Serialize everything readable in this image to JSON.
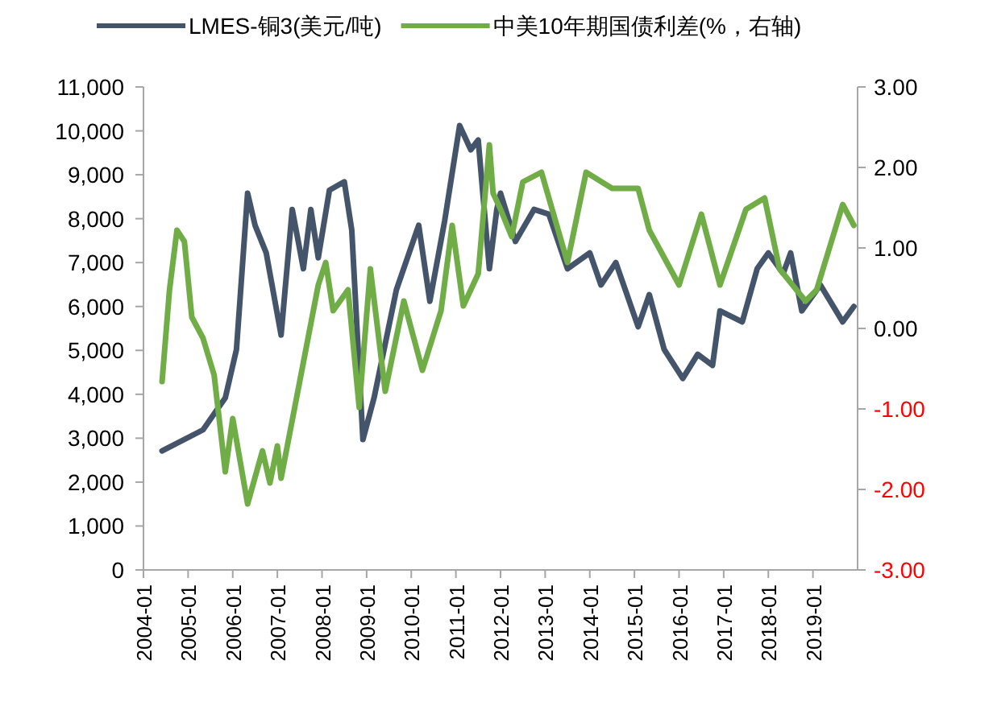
{
  "chart_data": {
    "type": "line",
    "legend": "top",
    "grid": false,
    "xlim": [
      "2004-01",
      "2020-01"
    ],
    "xticks": [
      "2004-01",
      "2005-01",
      "2006-01",
      "2007-01",
      "2008-01",
      "2009-01",
      "2010-01",
      "2011-01",
      "2012-01",
      "2013-01",
      "2014-01",
      "2015-01",
      "2016-01",
      "2017-01",
      "2018-01",
      "2019-01"
    ],
    "ylim": [
      0,
      11000
    ],
    "yticks": [
      {
        "value": 0,
        "label": "0"
      },
      {
        "value": 1000,
        "label": "1,000"
      },
      {
        "value": 2000,
        "label": "2,000"
      },
      {
        "value": 3000,
        "label": "3,000"
      },
      {
        "value": 4000,
        "label": "4,000"
      },
      {
        "value": 5000,
        "label": "5,000"
      },
      {
        "value": 6000,
        "label": "6,000"
      },
      {
        "value": 7000,
        "label": "7,000"
      },
      {
        "value": 8000,
        "label": "8,000"
      },
      {
        "value": 9000,
        "label": "9,000"
      },
      {
        "value": 10000,
        "label": "10,000"
      },
      {
        "value": 11000,
        "label": "11,000"
      }
    ],
    "y2lim": [
      -3,
      3
    ],
    "y2ticks": [
      {
        "value": -3,
        "label": "-3.00"
      },
      {
        "value": -2,
        "label": "-2.00"
      },
      {
        "value": -1,
        "label": "-1.00"
      },
      {
        "value": 0,
        "label": "0.00"
      },
      {
        "value": 1,
        "label": "1.00"
      },
      {
        "value": 2,
        "label": "2.00"
      },
      {
        "value": 3,
        "label": "3.00"
      }
    ],
    "series": [
      {
        "name": "LMES-铜3(美元/吨)",
        "color": "#44546a",
        "x": [
          "2004-06",
          "2005-05",
          "2005-11",
          "2006-02",
          "2006-05",
          "2006-07",
          "2006-10",
          "2007-02",
          "2007-05",
          "2007-08",
          "2007-10",
          "2007-12",
          "2008-03",
          "2008-07",
          "2008-09",
          "2008-12",
          "2009-03",
          "2009-09",
          "2010-03",
          "2010-06",
          "2010-10",
          "2011-02",
          "2011-05",
          "2011-07",
          "2011-10",
          "2011-12",
          "2012-01",
          "2012-05",
          "2012-10",
          "2013-02",
          "2013-07",
          "2014-01",
          "2014-04",
          "2014-08",
          "2015-02",
          "2015-05",
          "2015-09",
          "2016-02",
          "2016-06",
          "2016-10",
          "2016-12",
          "2017-06",
          "2017-10",
          "2018-01",
          "2018-05",
          "2018-07",
          "2018-10",
          "2019-03",
          "2019-09",
          "2019-12"
        ],
        "values": [
          2710,
          3190,
          3920,
          5020,
          8580,
          7850,
          7220,
          5350,
          8210,
          6860,
          8210,
          7110,
          8650,
          8840,
          7740,
          2970,
          3920,
          6380,
          7850,
          6120,
          7960,
          10120,
          9570,
          9790,
          6860,
          8210,
          8580,
          7480,
          8210,
          8100,
          6860,
          7220,
          6490,
          7000,
          5540,
          6270,
          5020,
          4360,
          4910,
          4660,
          5900,
          5650,
          6860,
          7220,
          6750,
          7220,
          5900,
          6490,
          5650,
          6000
        ]
      },
      {
        "name": "中美10年期国债利差(%，右轴)",
        "color": "#70ad47",
        "axis": "y2",
        "x": [
          "2004-06",
          "2004-08",
          "2004-10",
          "2004-12",
          "2005-02",
          "2005-05",
          "2005-08",
          "2005-11",
          "2006-01",
          "2006-05",
          "2006-09",
          "2006-11",
          "2007-01",
          "2007-02",
          "2007-07",
          "2007-12",
          "2008-02",
          "2008-04",
          "2008-08",
          "2008-11",
          "2009-02",
          "2009-06",
          "2009-11",
          "2010-04",
          "2010-09",
          "2010-12",
          "2011-03",
          "2011-07",
          "2011-10",
          "2011-11",
          "2012-01",
          "2012-04",
          "2012-07",
          "2012-12",
          "2013-07",
          "2013-12",
          "2014-07",
          "2015-02",
          "2015-05",
          "2016-01",
          "2016-07",
          "2016-12",
          "2017-07",
          "2017-12",
          "2018-04",
          "2018-11",
          "2019-02",
          "2019-09",
          "2019-12"
        ],
        "values": [
          -0.66,
          0.48,
          1.22,
          1.08,
          0.14,
          -0.12,
          -0.58,
          -1.78,
          -1.12,
          -2.18,
          -1.52,
          -1.92,
          -1.46,
          -1.86,
          -0.66,
          0.54,
          0.82,
          0.22,
          0.48,
          -0.98,
          0.74,
          -0.78,
          0.34,
          -0.52,
          0.22,
          1.28,
          0.28,
          0.68,
          2.28,
          1.68,
          1.48,
          1.14,
          1.82,
          1.94,
          0.82,
          1.94,
          1.74,
          1.74,
          1.22,
          0.54,
          1.42,
          0.54,
          1.48,
          1.62,
          0.74,
          0.34,
          0.48,
          1.54,
          1.28
        ]
      }
    ]
  }
}
